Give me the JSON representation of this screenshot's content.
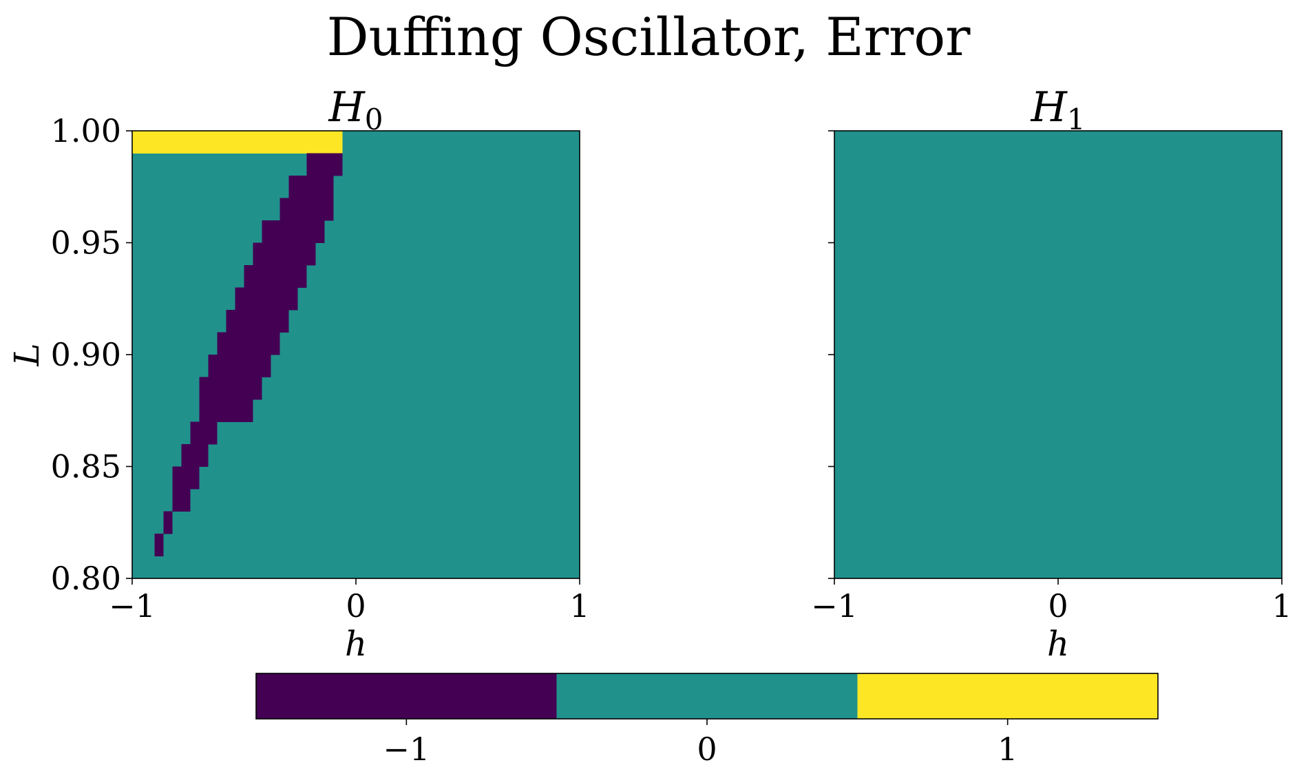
{
  "title": "Duffing Oscillator, Error",
  "colormap": {
    "name": "viridis",
    "colors": {
      "-1": "#440154",
      "0": "#21918c",
      "1": "#fde725"
    }
  },
  "chart_data": [
    {
      "type": "heatmap",
      "title_base": "H",
      "title_sub": "0",
      "xlabel": "h",
      "ylabel": "L",
      "xlim": [
        -1,
        1
      ],
      "ylim": [
        0.8,
        1.0
      ],
      "xticks": [
        -1,
        0,
        1
      ],
      "xtick_labels": [
        "−1",
        "0",
        "1"
      ],
      "yticks": [
        0.8,
        0.85,
        0.9,
        0.95,
        1.0
      ],
      "ytick_labels": [
        "0.80",
        "0.85",
        "0.90",
        "0.95",
        "1.00"
      ],
      "background_value": 0,
      "cells": [
        {
          "value": 1,
          "x": [
            -1.0,
            -0.06
          ],
          "y": [
            0.99,
            1.0
          ]
        },
        {
          "value": -1,
          "x": [
            -0.22,
            -0.06
          ],
          "y": [
            0.98,
            0.99
          ]
        },
        {
          "value": -1,
          "x": [
            -0.3,
            -0.1
          ],
          "y": [
            0.97,
            0.98
          ]
        },
        {
          "value": -1,
          "x": [
            -0.34,
            -0.1
          ],
          "y": [
            0.96,
            0.97
          ]
        },
        {
          "value": -1,
          "x": [
            -0.42,
            -0.14
          ],
          "y": [
            0.95,
            0.96
          ]
        },
        {
          "value": -1,
          "x": [
            -0.46,
            -0.18
          ],
          "y": [
            0.94,
            0.95
          ]
        },
        {
          "value": -1,
          "x": [
            -0.5,
            -0.22
          ],
          "y": [
            0.93,
            0.94
          ]
        },
        {
          "value": -1,
          "x": [
            -0.54,
            -0.26
          ],
          "y": [
            0.92,
            0.93
          ]
        },
        {
          "value": -1,
          "x": [
            -0.58,
            -0.3
          ],
          "y": [
            0.91,
            0.92
          ]
        },
        {
          "value": -1,
          "x": [
            -0.62,
            -0.34
          ],
          "y": [
            0.9,
            0.91
          ]
        },
        {
          "value": -1,
          "x": [
            -0.66,
            -0.38
          ],
          "y": [
            0.89,
            0.9
          ]
        },
        {
          "value": -1,
          "x": [
            -0.7,
            -0.42
          ],
          "y": [
            0.88,
            0.89
          ]
        },
        {
          "value": -1,
          "x": [
            -0.7,
            -0.46
          ],
          "y": [
            0.87,
            0.88
          ]
        },
        {
          "value": -1,
          "x": [
            -0.74,
            -0.62
          ],
          "y": [
            0.86,
            0.87
          ]
        },
        {
          "value": -1,
          "x": [
            -0.78,
            -0.66
          ],
          "y": [
            0.85,
            0.86
          ]
        },
        {
          "value": -1,
          "x": [
            -0.82,
            -0.7
          ],
          "y": [
            0.84,
            0.85
          ]
        },
        {
          "value": -1,
          "x": [
            -0.82,
            -0.74
          ],
          "y": [
            0.83,
            0.84
          ]
        },
        {
          "value": -1,
          "x": [
            -0.86,
            -0.82
          ],
          "y": [
            0.82,
            0.83
          ]
        },
        {
          "value": -1,
          "x": [
            -0.9,
            -0.86
          ],
          "y": [
            0.81,
            0.82
          ]
        }
      ]
    },
    {
      "type": "heatmap",
      "title_base": "H",
      "title_sub": "1",
      "xlabel": "h",
      "ylabel": "",
      "xlim": [
        -1,
        1
      ],
      "ylim": [
        0.8,
        1.0
      ],
      "xticks": [
        -1,
        0,
        1
      ],
      "xtick_labels": [
        "−1",
        "0",
        "1"
      ],
      "yticks": [
        0.8,
        0.85,
        0.9,
        0.95,
        1.0
      ],
      "ytick_labels": [],
      "background_value": 0,
      "cells": []
    }
  ],
  "colorbar": {
    "values": [
      -1,
      0,
      1
    ],
    "tick_labels": [
      "−1",
      "0",
      "1"
    ]
  }
}
